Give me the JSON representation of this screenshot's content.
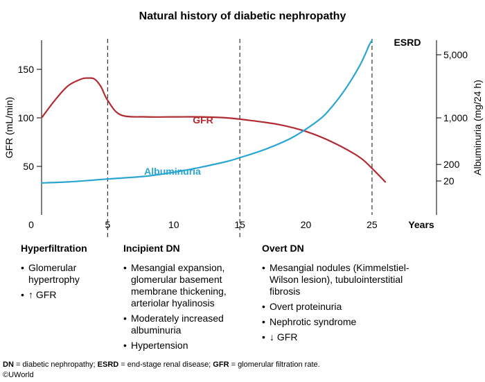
{
  "chart_data": {
    "type": "line",
    "title": "Natural history of diabetic nephropathy",
    "x_unit_label": "Years",
    "xlim": [
      0,
      26
    ],
    "xticks": [
      0,
      5,
      10,
      15,
      20,
      25
    ],
    "ylabel_left": "GFR (mL/min)",
    "ylim_left": [
      0,
      180
    ],
    "yticks_left": [
      50,
      100,
      150
    ],
    "ylabel_right": "Albuminuria (mg/24 h)",
    "yticks_right": [
      "5,000",
      "1,000",
      "200",
      "20"
    ],
    "yticks_right_at_left_scale": [
      165,
      100,
      52,
      35
    ],
    "phase_dividers": [
      5,
      15,
      25
    ],
    "end_label": "ESRD",
    "grid": false,
    "legend": "none (series labeled inline)",
    "series": [
      {
        "name": "GFR",
        "color": "#b02a30",
        "x": [
          0,
          1,
          2,
          3,
          3.5,
          4,
          4.5,
          5,
          6,
          8,
          10,
          12,
          14,
          16,
          18,
          20,
          22,
          24,
          25,
          26
        ],
        "y": [
          100,
          118,
          133,
          140,
          141,
          140,
          132,
          118,
          103,
          101,
          101,
          101,
          100,
          97,
          93,
          86,
          75,
          60,
          48,
          34
        ]
      },
      {
        "name": "Albuminuria",
        "color": "#2aa5d2",
        "x": [
          0,
          2,
          5,
          8,
          10,
          12,
          14,
          15,
          17,
          19,
          21,
          22,
          23,
          24,
          24.5,
          24.75,
          25
        ],
        "y": [
          33,
          34,
          37,
          40,
          44,
          49,
          55,
          59,
          68,
          80,
          98,
          112,
          130,
          152,
          166,
          174,
          180
        ]
      }
    ],
    "annotations": {
      "gfr_label": "GFR",
      "albuminuria_label": "Albuminuria"
    }
  },
  "stages": [
    {
      "heading": "Hyperfiltration",
      "items": [
        "Glomerular hypertrophy",
        "↑ GFR"
      ]
    },
    {
      "heading": "Incipient DN",
      "items": [
        "Mesangial expansion, glomerular basement membrane thickening, arteriolar hyalinosis",
        "Moderately increased albuminuria",
        "Hypertension"
      ]
    },
    {
      "heading": "Overt DN",
      "items": [
        "Mesangial nodules (Kimmelstiel-Wilson lesion), tubulointerstitial fibrosis",
        "Overt proteinuria",
        "Nephrotic syndrome",
        "↓ GFR"
      ]
    }
  ],
  "footnote": {
    "dn_abbr": "DN",
    "dn_text": " = diabetic nephropathy; ",
    "esrd_abbr": "ESRD",
    "esrd_text": " = end-stage renal disease; ",
    "gfr_abbr": "GFR",
    "gfr_text": " = glomerular filtration rate."
  },
  "copyright": "©UWorld",
  "colors": {
    "gfr": "#b02a30",
    "albuminuria": "#2aa5d2",
    "axis": "#000000"
  }
}
